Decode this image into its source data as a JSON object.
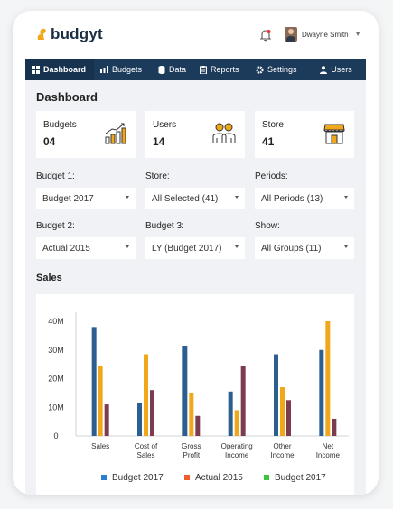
{
  "app": {
    "name": "budgyt"
  },
  "user": {
    "name": "Dwayne Smith"
  },
  "nav": {
    "items": [
      {
        "label": "Dashboard",
        "icon": "dashboard-grid-icon",
        "active": true
      },
      {
        "label": "Budgets",
        "icon": "bar-chart-icon",
        "active": false
      },
      {
        "label": "Data",
        "icon": "database-icon",
        "active": false
      },
      {
        "label": "Reports",
        "icon": "clipboard-icon",
        "active": false
      },
      {
        "label": "Settings",
        "icon": "gear-icon",
        "active": false
      },
      {
        "label": "Users",
        "icon": "user-icon",
        "active": false
      }
    ]
  },
  "page": {
    "title": "Dashboard",
    "sales_title": "Sales"
  },
  "stats": [
    {
      "label": "Budgets",
      "value": "04",
      "icon": "growth-chart-icon"
    },
    {
      "label": "Users",
      "value": "14",
      "icon": "people-icon"
    },
    {
      "label": "Store",
      "value": "41",
      "icon": "storefront-icon"
    }
  ],
  "filters": [
    {
      "label": "Budget 1:",
      "value": "Budget 2017"
    },
    {
      "label": "Store:",
      "value": "All Selected (41)"
    },
    {
      "label": "Periods:",
      "value": "All Periods (13)"
    },
    {
      "label": "Budget 2:",
      "value": "Actual 2015"
    },
    {
      "label": "Budget 3:",
      "value": "LY (Budget 2017)"
    },
    {
      "label": "Show:",
      "value": "All Groups (11)"
    }
  ],
  "colors": {
    "nav_bg": "#1c3b5a",
    "series_blue": "#2c5f8f",
    "series_yellow": "#f0a81a",
    "series_maroon": "#7c3b4f",
    "legend_orange": "#f25c2b",
    "legend_green": "#3cc23c"
  },
  "chart_data": {
    "type": "bar",
    "categories": [
      "Sales",
      "Cost of Sales",
      "Gross Profit",
      "Operating Income",
      "Other Income",
      "Net Income"
    ],
    "category_lines": [
      [
        "Sales"
      ],
      [
        "Cost of",
        "Sales"
      ],
      [
        "Gross",
        "Profit"
      ],
      [
        "Operating",
        "Income"
      ],
      [
        "Other",
        "Income"
      ],
      [
        "Net",
        "Income"
      ]
    ],
    "series": [
      {
        "values": [
          38,
          11.5,
          31.5,
          15.5,
          28.5,
          30
        ],
        "color": "#2c5f8f"
      },
      {
        "values": [
          24.5,
          28.5,
          15,
          9,
          17,
          40
        ],
        "color": "#f0a81a"
      },
      {
        "values": [
          11,
          16,
          7,
          24.5,
          12.5,
          6
        ],
        "color": "#7c3b4f"
      }
    ],
    "ylim": [
      0,
      40
    ],
    "yticks": [
      0,
      10,
      20,
      30,
      40
    ],
    "ytick_labels": [
      "0",
      "10M",
      "20M",
      "30M",
      "40M"
    ],
    "legend": [
      {
        "label": "Budget 2017",
        "color": "#2c7fd0"
      },
      {
        "label": "Actual 2015",
        "color": "#f25c2b"
      },
      {
        "label": "Budget 2017",
        "color": "#3cc23c"
      }
    ],
    "legend_position": "bottom",
    "grid": false
  }
}
